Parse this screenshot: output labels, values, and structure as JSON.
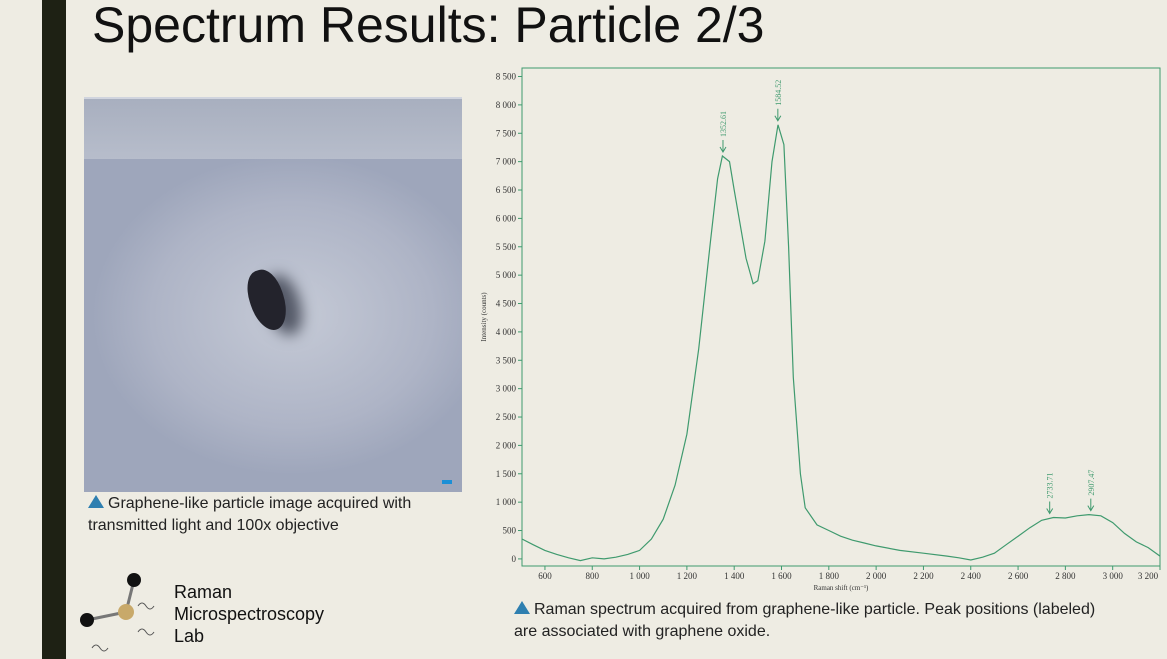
{
  "title": "Spectrum Results: Particle 2/3",
  "image_caption": "Graphene-like particle image acquired with transmitted light and 100x objective",
  "chart_caption": "Raman spectrum acquired from graphene-like particle. Peak positions (labeled) are associated with graphene oxide.",
  "logo": {
    "lines": [
      "Raman",
      "Microspectroscopy",
      "Lab"
    ]
  },
  "chart_data": {
    "type": "line",
    "x_label": "Raman shift (cm⁻¹)",
    "y_label": "Intensity (counts)",
    "color": "#3f9a6e",
    "grid": false,
    "xlim": [
      503,
      3200
    ],
    "ylim": [
      -125,
      8650
    ],
    "xticks": [
      600,
      800,
      {
        "value": 1000,
        "label": "1 000"
      },
      {
        "value": 1200,
        "label": "1 200"
      },
      {
        "value": 1400,
        "label": "1 400"
      },
      {
        "value": 1600,
        "label": "1 600"
      },
      {
        "value": 1800,
        "label": "1 800"
      },
      {
        "value": 2000,
        "label": "2 000"
      },
      {
        "value": 2200,
        "label": "2 200"
      },
      {
        "value": 2400,
        "label": "2 400"
      },
      {
        "value": 2600,
        "label": "2 600"
      },
      {
        "value": 2800,
        "label": "2 800"
      },
      {
        "value": 3000,
        "label": "3 000"
      },
      {
        "value": 3200,
        "label": "3 200"
      }
    ],
    "yticks": [
      0,
      500,
      {
        "value": 1000,
        "label": "1 000"
      },
      {
        "value": 1500,
        "label": "1 500"
      },
      {
        "value": 2000,
        "label": "2 000"
      },
      {
        "value": 2500,
        "label": "2 500"
      },
      {
        "value": 3000,
        "label": "3 000"
      },
      {
        "value": 3500,
        "label": "3 500"
      },
      {
        "value": 4000,
        "label": "4 000"
      },
      {
        "value": 4500,
        "label": "4 500"
      },
      {
        "value": 5000,
        "label": "5 000"
      },
      {
        "value": 5500,
        "label": "5 500"
      },
      {
        "value": 6000,
        "label": "6 000"
      },
      {
        "value": 6500,
        "label": "6 500"
      },
      {
        "value": 7000,
        "label": "7 000"
      },
      {
        "value": 7500,
        "label": "7 500"
      },
      {
        "value": 8000,
        "label": "8 000"
      },
      {
        "value": 8500,
        "label": "8 500"
      }
    ],
    "x": [
      503,
      550,
      600,
      650,
      700,
      750,
      800,
      850,
      900,
      950,
      1000,
      1050,
      1100,
      1150,
      1200,
      1250,
      1300,
      1330,
      1350,
      1380,
      1400,
      1450,
      1480,
      1500,
      1530,
      1560,
      1585,
      1610,
      1630,
      1650,
      1680,
      1700,
      1750,
      1800,
      1850,
      1900,
      1950,
      2000,
      2100,
      2200,
      2300,
      2350,
      2400,
      2450,
      2500,
      2550,
      2600,
      2650,
      2700,
      2750,
      2800,
      2850,
      2900,
      2950,
      3000,
      3050,
      3100,
      3150,
      3200
    ],
    "values": [
      350,
      250,
      150,
      80,
      20,
      -30,
      20,
      0,
      30,
      80,
      150,
      350,
      700,
      1300,
      2200,
      3700,
      5600,
      6700,
      7100,
      7000,
      6500,
      5300,
      4850,
      4900,
      5600,
      7000,
      7650,
      7300,
      5500,
      3200,
      1500,
      900,
      600,
      500,
      400,
      330,
      280,
      230,
      150,
      100,
      50,
      20,
      -20,
      30,
      100,
      250,
      400,
      550,
      680,
      730,
      720,
      760,
      780,
      760,
      640,
      450,
      300,
      200,
      50
    ],
    "peaks": [
      {
        "x": 1352.61,
        "y": 7100
      },
      {
        "x": 1584.52,
        "y": 7650
      },
      {
        "x": 2733.71,
        "y": 730
      },
      {
        "x": 2907.47,
        "y": 780
      }
    ]
  }
}
